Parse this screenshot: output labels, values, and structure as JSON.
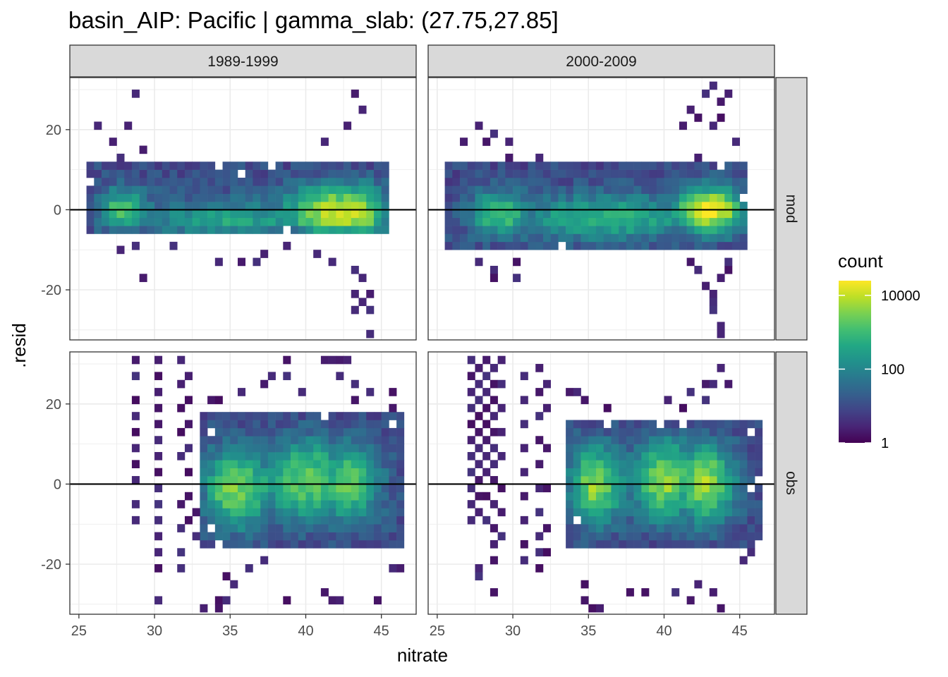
{
  "chart_data": {
    "type": "heatmap",
    "title": "basin_AIP: Pacific | gamma_slab: (27.75,27.85]",
    "xlabel": "nitrate",
    "ylabel": ".resid",
    "xlim": [
      24.4,
      47.3
    ],
    "ylim": [
      -32.5,
      33
    ],
    "x_ticks": [
      25,
      30,
      35,
      40,
      45
    ],
    "y_ticks": [
      -20,
      0,
      20
    ],
    "bin_width_x": 0.5,
    "bin_height_y": 2.0,
    "columns": [
      "1989-1999",
      "2000-2009"
    ],
    "rows": [
      "mod",
      "obs"
    ],
    "reference_line_y": 0,
    "legend": {
      "title": "count",
      "scale": "log10",
      "palette": "viridis",
      "range": [
        1,
        25000
      ],
      "breaks": [
        1,
        100,
        10000
      ],
      "labels": [
        "1",
        "100",
        "10000"
      ]
    },
    "panels": [
      {
        "column": "1989-1999",
        "row": "mod",
        "density": [
          {
            "x": 27.5,
            "y": 0,
            "weight": 0.6,
            "sx": 1.4,
            "sy": 4
          },
          {
            "x": 35,
            "y": -3,
            "weight": 0.45,
            "sx": 5,
            "sy": 4
          },
          {
            "x": 42,
            "y": -1,
            "weight": 0.95,
            "sx": 2.6,
            "sy": 5
          }
        ],
        "x_range": [
          25.8,
          45.3
        ],
        "y_range": [
          -6,
          11
        ],
        "outliers": [
          [
            28.5,
            29
          ],
          [
            43.2,
            29
          ],
          [
            43.5,
            25
          ],
          [
            42.5,
            21
          ],
          [
            26,
            21
          ],
          [
            28,
            21
          ],
          [
            27,
            17
          ],
          [
            27.5,
            13
          ],
          [
            29,
            15
          ],
          [
            39,
            9
          ],
          [
            40,
            9
          ],
          [
            41,
            17
          ],
          [
            44.5,
            7
          ],
          [
            29.5,
            5
          ],
          [
            30,
            3
          ],
          [
            27.5,
            -10
          ],
          [
            28.7,
            -9
          ],
          [
            31,
            -9
          ],
          [
            34,
            -13
          ],
          [
            35.5,
            -13
          ],
          [
            37,
            -11
          ],
          [
            38.5,
            -9
          ],
          [
            40.5,
            -11
          ],
          [
            41.5,
            -13
          ],
          [
            43,
            -15
          ],
          [
            43.5,
            -17
          ],
          [
            29,
            -17
          ],
          [
            43,
            -21
          ],
          [
            43.5,
            -23
          ],
          [
            44,
            -21
          ],
          [
            44,
            -25
          ],
          [
            43,
            -25
          ],
          [
            44,
            -31
          ],
          [
            36.8,
            -13
          ],
          [
            39.5,
            5
          ]
        ]
      },
      {
        "column": "2000-2009",
        "row": "mod",
        "density": [
          {
            "x": 29,
            "y": -1,
            "weight": 0.65,
            "sx": 1.5,
            "sy": 4
          },
          {
            "x": 36,
            "y": -2,
            "weight": 0.55,
            "sx": 4.5,
            "sy": 4
          },
          {
            "x": 42.8,
            "y": 0,
            "weight": 1.0,
            "sx": 1.8,
            "sy": 4
          }
        ],
        "x_range": [
          25.8,
          45.3
        ],
        "y_range": [
          -10,
          11
        ],
        "outliers": [
          [
            43,
            31
          ],
          [
            42.5,
            29
          ],
          [
            43.5,
            27
          ],
          [
            44,
            29
          ],
          [
            41.5,
            25
          ],
          [
            42,
            23
          ],
          [
            43,
            21
          ],
          [
            41,
            21
          ],
          [
            43.5,
            23
          ],
          [
            27.5,
            21
          ],
          [
            28.5,
            19
          ],
          [
            29.5,
            17
          ],
          [
            29.5,
            13
          ],
          [
            31.5,
            13
          ],
          [
            29.5,
            9
          ],
          [
            31,
            5
          ],
          [
            32.5,
            5
          ],
          [
            33.5,
            9
          ],
          [
            37,
            9
          ],
          [
            28,
            17
          ],
          [
            26.5,
            17
          ],
          [
            44.5,
            17
          ],
          [
            42,
            13
          ],
          [
            27.5,
            -13
          ],
          [
            28.5,
            -15
          ],
          [
            28.5,
            -17
          ],
          [
            30,
            -13
          ],
          [
            30,
            -17
          ],
          [
            39.5,
            -9
          ],
          [
            41.5,
            -13
          ],
          [
            42,
            -15
          ],
          [
            42.5,
            -19
          ],
          [
            43,
            -21
          ],
          [
            43,
            -23
          ],
          [
            43,
            -25
          ],
          [
            43.5,
            -29
          ],
          [
            43.5,
            -31
          ],
          [
            43.5,
            -17
          ],
          [
            44,
            -15
          ],
          [
            44,
            -13
          ]
        ]
      },
      {
        "column": "1989-1999",
        "row": "obs",
        "density": [
          {
            "x": 35,
            "y": -1,
            "weight": 0.75,
            "sx": 2,
            "sy": 7
          },
          {
            "x": 39.8,
            "y": 1,
            "weight": 0.72,
            "sx": 2,
            "sy": 7
          },
          {
            "x": 42.5,
            "y": 0,
            "weight": 0.7,
            "sx": 1.5,
            "sy": 7
          }
        ],
        "x_range": [
          33,
          46.2
        ],
        "y_range": [
          -15,
          17
        ],
        "outliers": [
          [
            28.5,
            31
          ],
          [
            28.5,
            27
          ],
          [
            28.5,
            21
          ],
          [
            28.5,
            17
          ],
          [
            28.5,
            13
          ],
          [
            28.5,
            9
          ],
          [
            28.5,
            5
          ],
          [
            28.5,
            1
          ],
          [
            28.5,
            -5
          ],
          [
            28.5,
            -9
          ],
          [
            30.3,
            31
          ],
          [
            30.3,
            27
          ],
          [
            30.3,
            23
          ],
          [
            30.3,
            19
          ],
          [
            30.3,
            15
          ],
          [
            30.3,
            11
          ],
          [
            30.3,
            7
          ],
          [
            30.3,
            3
          ],
          [
            30.3,
            -1
          ],
          [
            30.3,
            -5
          ],
          [
            30.3,
            -9
          ],
          [
            30.3,
            -13
          ],
          [
            30.3,
            -17
          ],
          [
            30.3,
            -21
          ],
          [
            30.3,
            -29
          ],
          [
            31.5,
            31
          ],
          [
            31.5,
            25
          ],
          [
            31.5,
            19
          ],
          [
            31.5,
            13
          ],
          [
            31.5,
            7
          ],
          [
            31.5,
            -5
          ],
          [
            31.5,
            -11
          ],
          [
            31.5,
            -17
          ],
          [
            31.5,
            -21
          ],
          [
            32.2,
            27
          ],
          [
            32.2,
            21
          ],
          [
            32.2,
            15
          ],
          [
            32.2,
            9
          ],
          [
            32.2,
            3
          ],
          [
            32.2,
            -3
          ],
          [
            32.2,
            -9
          ],
          [
            32.5,
            -13
          ],
          [
            32.5,
            -7
          ],
          [
            33.5,
            21
          ],
          [
            34,
            21
          ],
          [
            34.5,
            -23
          ],
          [
            35,
            -25
          ],
          [
            34,
            -29
          ],
          [
            34.5,
            -29
          ],
          [
            33,
            -31
          ],
          [
            34.3,
            -31
          ],
          [
            35.8,
            23
          ],
          [
            37,
            25
          ],
          [
            37.5,
            27
          ],
          [
            38.5,
            31
          ],
          [
            38.5,
            27
          ],
          [
            39.5,
            23
          ],
          [
            41,
            31
          ],
          [
            41.5,
            31
          ],
          [
            42,
            31
          ],
          [
            42.5,
            31
          ],
          [
            42,
            27
          ],
          [
            43,
            25
          ],
          [
            43,
            21
          ],
          [
            44,
            23
          ],
          [
            45.5,
            23
          ],
          [
            45.5,
            19
          ],
          [
            46,
            7
          ],
          [
            46,
            3
          ],
          [
            45.5,
            -21
          ],
          [
            46,
            -21
          ],
          [
            44.5,
            -29
          ],
          [
            41,
            -27
          ],
          [
            41.5,
            -29
          ],
          [
            42,
            -29
          ],
          [
            38.5,
            -29
          ],
          [
            36,
            -21
          ],
          [
            37,
            -19
          ]
        ]
      },
      {
        "column": "2000-2009",
        "row": "obs",
        "density": [
          {
            "x": 35,
            "y": 0,
            "weight": 0.78,
            "sx": 1.6,
            "sy": 7
          },
          {
            "x": 39.8,
            "y": 1,
            "weight": 0.8,
            "sx": 1.6,
            "sy": 7
          },
          {
            "x": 42.5,
            "y": 0,
            "weight": 0.82,
            "sx": 1.4,
            "sy": 7
          }
        ],
        "x_range": [
          33.5,
          46.2
        ],
        "y_range": [
          -15,
          15
        ],
        "outliers": [
          [
            27,
            31
          ],
          [
            27,
            27
          ],
          [
            27,
            23
          ],
          [
            27,
            19
          ],
          [
            27,
            15
          ],
          [
            27,
            11
          ],
          [
            27,
            7
          ],
          [
            27,
            3
          ],
          [
            27,
            -1
          ],
          [
            27,
            -5
          ],
          [
            27,
            -9
          ],
          [
            27.5,
            29
          ],
          [
            27.5,
            25
          ],
          [
            27.5,
            21
          ],
          [
            27.5,
            17
          ],
          [
            27.5,
            13
          ],
          [
            27.5,
            9
          ],
          [
            27.5,
            5
          ],
          [
            27.5,
            1
          ],
          [
            27.5,
            -3
          ],
          [
            27.5,
            -7
          ],
          [
            28,
            31
          ],
          [
            28,
            27
          ],
          [
            28,
            23
          ],
          [
            28,
            19
          ],
          [
            28,
            15
          ],
          [
            28,
            11
          ],
          [
            28,
            7
          ],
          [
            28,
            3
          ],
          [
            28,
            -3
          ],
          [
            28,
            -9
          ],
          [
            28.5,
            29
          ],
          [
            28.5,
            25
          ],
          [
            28.5,
            21
          ],
          [
            28.5,
            17
          ],
          [
            28.5,
            13
          ],
          [
            28.5,
            9
          ],
          [
            28.5,
            5
          ],
          [
            28.5,
            1
          ],
          [
            28.5,
            -5
          ],
          [
            28.5,
            -11
          ],
          [
            28.5,
            -15
          ],
          [
            29,
            31
          ],
          [
            29,
            25
          ],
          [
            29,
            19
          ],
          [
            29,
            13
          ],
          [
            29,
            7
          ],
          [
            29,
            -1
          ],
          [
            29,
            -7
          ],
          [
            29,
            -13
          ],
          [
            27.5,
            -21
          ],
          [
            27.5,
            -23
          ],
          [
            28.5,
            -19
          ],
          [
            28.5,
            -27
          ],
          [
            30.5,
            27
          ],
          [
            30.5,
            21
          ],
          [
            30.5,
            15
          ],
          [
            30.5,
            9
          ],
          [
            30.5,
            3
          ],
          [
            30.5,
            -3
          ],
          [
            30.5,
            -9
          ],
          [
            30.5,
            -15
          ],
          [
            30.5,
            -19
          ],
          [
            31.8,
            29
          ],
          [
            31.8,
            23
          ],
          [
            31.8,
            17
          ],
          [
            31.8,
            11
          ],
          [
            31.8,
            5
          ],
          [
            31.8,
            -1
          ],
          [
            31.8,
            -7
          ],
          [
            31.8,
            -13
          ],
          [
            31.8,
            -17
          ],
          [
            31.8,
            -21
          ],
          [
            32.4,
            25
          ],
          [
            32.4,
            19
          ],
          [
            32.4,
            9
          ],
          [
            32.4,
            -1
          ],
          [
            32.4,
            -11
          ],
          [
            32.4,
            -17
          ],
          [
            33.5,
            23
          ],
          [
            34,
            23
          ],
          [
            34.8,
            21
          ],
          [
            36,
            19
          ],
          [
            40,
            21
          ],
          [
            41,
            19
          ],
          [
            41.5,
            23
          ],
          [
            42.5,
            25
          ],
          [
            43,
            25
          ],
          [
            43.5,
            29
          ],
          [
            44,
            25
          ],
          [
            42.5,
            21
          ],
          [
            34.5,
            -25
          ],
          [
            34.5,
            -29
          ],
          [
            35,
            -31
          ],
          [
            35.5,
            -31
          ],
          [
            37.5,
            -27
          ],
          [
            38.5,
            -27
          ],
          [
            40.5,
            -27
          ],
          [
            41.5,
            -29
          ],
          [
            42,
            -25
          ],
          [
            43,
            -27
          ],
          [
            43.5,
            -31
          ],
          [
            45,
            -19
          ],
          [
            45.5,
            -17
          ],
          [
            45.5,
            9
          ]
        ]
      }
    ]
  }
}
